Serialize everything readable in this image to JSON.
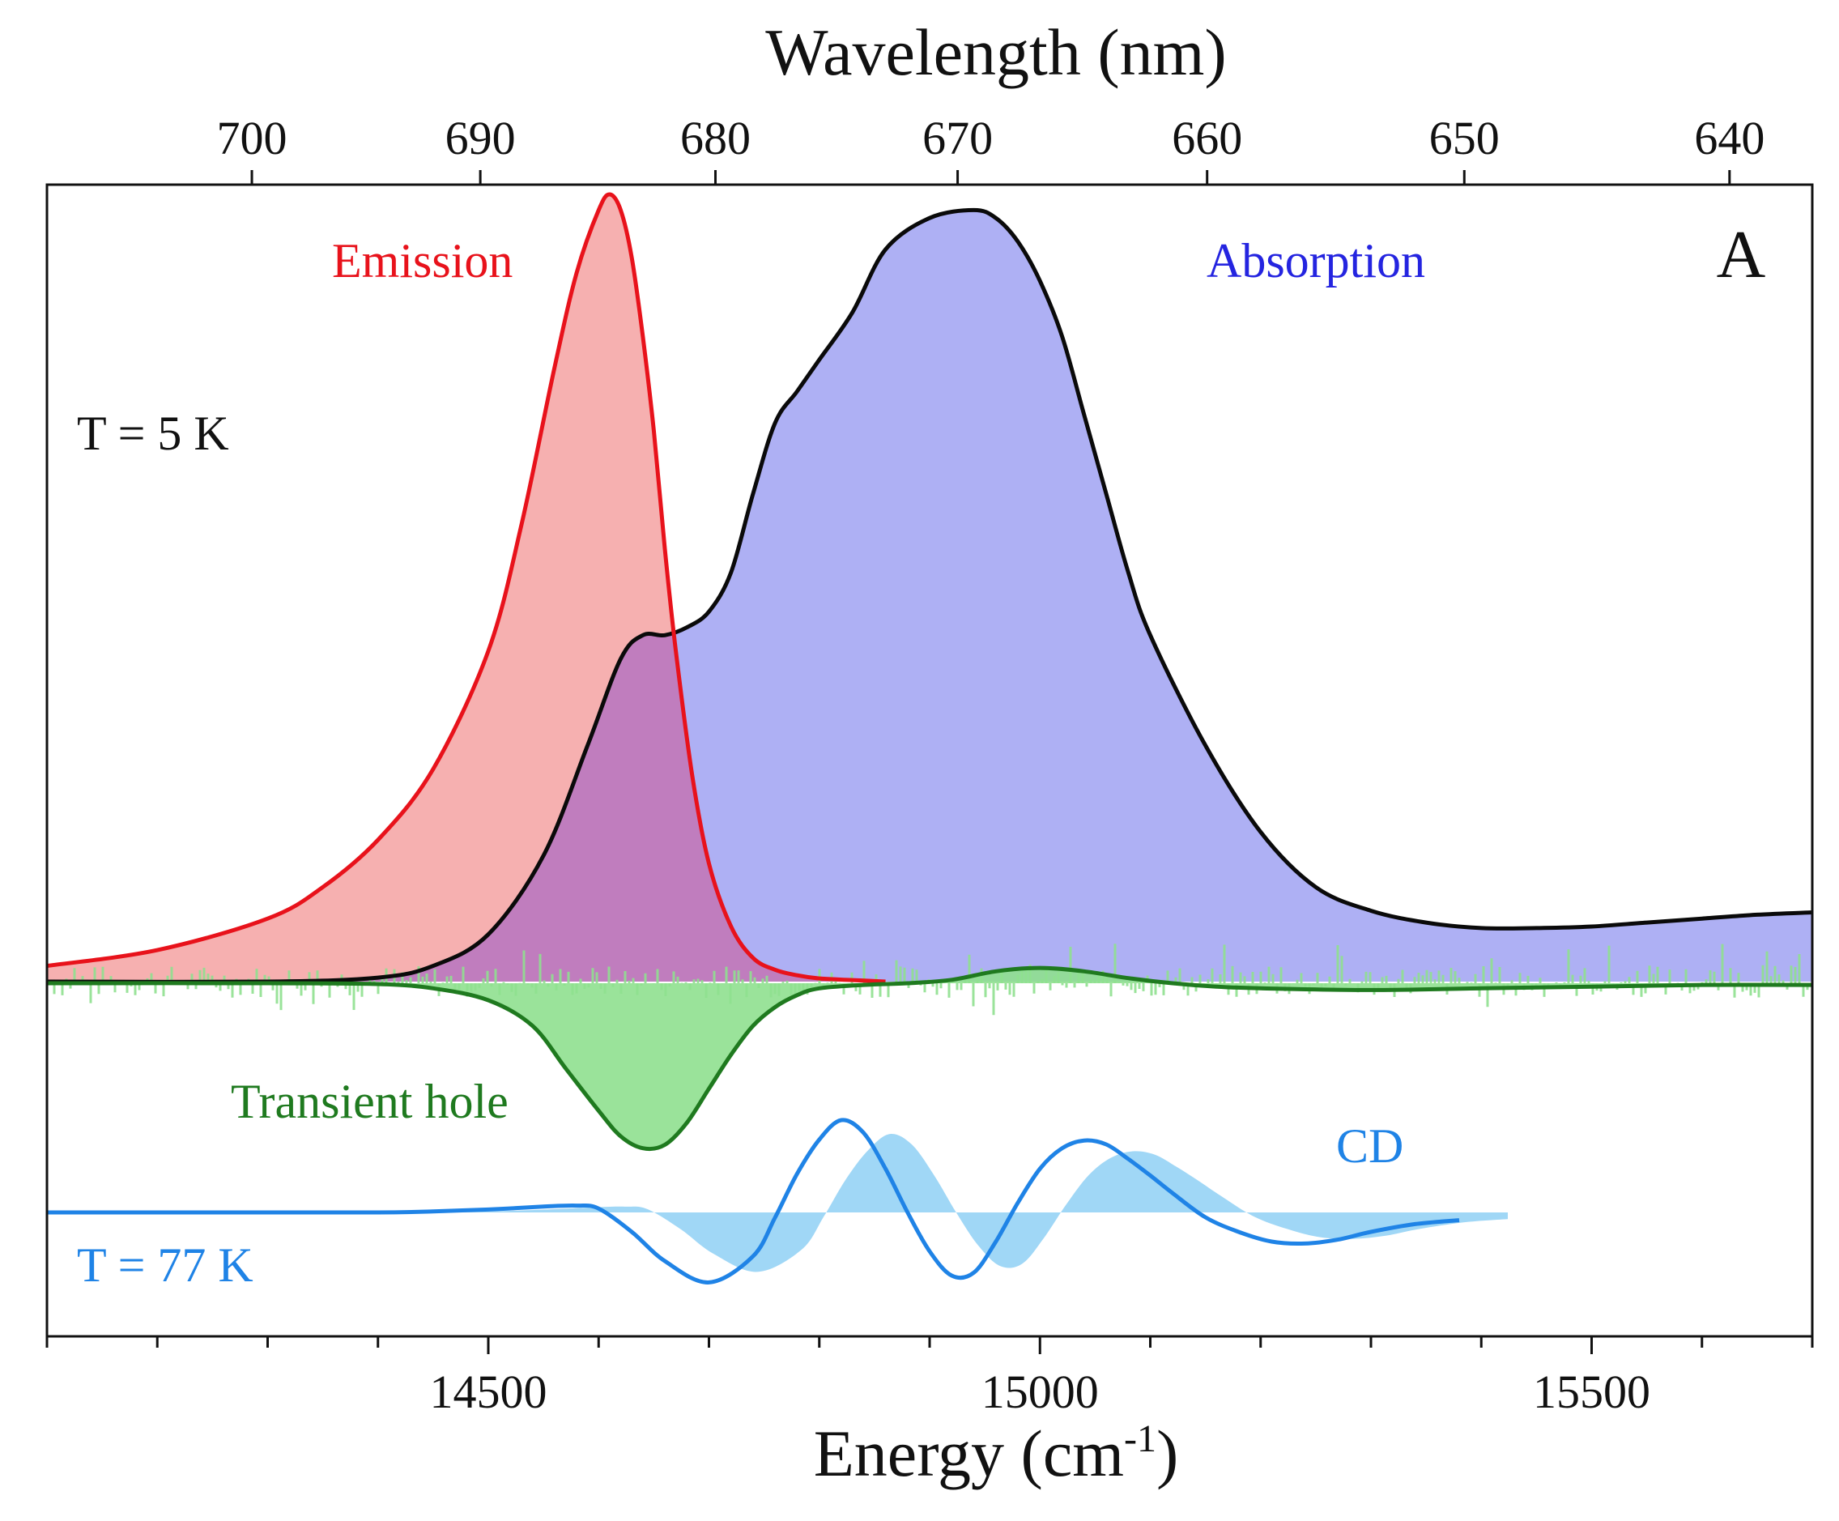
{
  "chart_data": {
    "type": "area",
    "panel_label": "A",
    "xlabel": "Energy (cm",
    "xlabel_superscript": "-1",
    "xlabel_suffix": ")",
    "top_xlabel": "Wavelength (nm)",
    "xlim": [
      14100,
      15700
    ],
    "bottom_ticks": [
      14500,
      15000,
      15500
    ],
    "bottom_tick_labels": [
      "14500",
      "15000",
      "15500"
    ],
    "top_ticks_nm": [
      700,
      690,
      680,
      670,
      660,
      650,
      640
    ],
    "top_tick_labels": [
      "700",
      "690",
      "680",
      "670",
      "660",
      "650",
      "640"
    ],
    "annotations": {
      "emission": "Emission",
      "absorption": "Absorption",
      "temp_5k": "T = 5 K",
      "transient_hole": "Transient hole",
      "cd": "CD",
      "temp_77k": "T = 77 K"
    },
    "colors": {
      "emission": "#e8121b",
      "emission_fill": "#f5a9a9",
      "absorption_line": "#0a0a0a",
      "absorption_fill": "#aeb0f4",
      "overlap_fill": "#c07dbe",
      "absorption_text": "#2424e0",
      "hole_line": "#1f7a1f",
      "hole_fill": "#8fe08f",
      "hole_text": "#1f7a1f",
      "cd_line": "#1f83e6",
      "cd_fill": "#8fd0f5",
      "cd_text": "#1f83e6"
    },
    "series": [
      {
        "name": "Emission",
        "x": [
          14100,
          14200,
          14300,
          14350,
          14400,
          14450,
          14500,
          14530,
          14560,
          14580,
          14600,
          14610,
          14620,
          14630,
          14640,
          14650,
          14660,
          14670,
          14685,
          14700,
          14720,
          14740,
          14760,
          14780,
          14800,
          14830,
          14860
        ],
        "y": [
          0.02,
          0.04,
          0.08,
          0.12,
          0.18,
          0.27,
          0.42,
          0.58,
          0.78,
          0.9,
          0.98,
          1.0,
          0.98,
          0.92,
          0.82,
          0.7,
          0.55,
          0.42,
          0.26,
          0.15,
          0.07,
          0.03,
          0.015,
          0.008,
          0.004,
          0.002,
          0.0
        ]
      },
      {
        "name": "Absorption",
        "x": [
          14100,
          14300,
          14400,
          14450,
          14500,
          14550,
          14590,
          14620,
          14640,
          14660,
          14680,
          14700,
          14720,
          14740,
          14760,
          14780,
          14800,
          14830,
          14860,
          14900,
          14940,
          14960,
          14980,
          15000,
          15020,
          15040,
          15060,
          15080,
          15100,
          15150,
          15200,
          15250,
          15300,
          15350,
          15400,
          15450,
          15500,
          15550,
          15600,
          15650,
          15700
        ],
        "y": [
          0.0,
          0.0,
          0.005,
          0.02,
          0.06,
          0.16,
          0.3,
          0.41,
          0.44,
          0.44,
          0.45,
          0.47,
          0.52,
          0.62,
          0.71,
          0.75,
          0.79,
          0.85,
          0.93,
          0.97,
          0.98,
          0.97,
          0.94,
          0.89,
          0.82,
          0.72,
          0.62,
          0.52,
          0.44,
          0.3,
          0.19,
          0.12,
          0.09,
          0.075,
          0.068,
          0.068,
          0.07,
          0.075,
          0.08,
          0.085,
          0.088
        ]
      },
      {
        "name": "Transient hole",
        "x": [
          14100,
          14300,
          14400,
          14450,
          14500,
          14540,
          14570,
          14600,
          14620,
          14640,
          14660,
          14680,
          14700,
          14720,
          14740,
          14760,
          14780,
          14800,
          14840,
          14880,
          14920,
          14960,
          15000,
          15040,
          15080,
          15120,
          15160,
          15200,
          15300,
          15400,
          15500,
          15600,
          15700
        ],
        "y": [
          0.0,
          0.0,
          -0.005,
          -0.03,
          -0.1,
          -0.25,
          -0.5,
          -0.75,
          -0.9,
          -0.97,
          -0.95,
          -0.82,
          -0.62,
          -0.42,
          -0.25,
          -0.14,
          -0.07,
          -0.03,
          -0.01,
          0.0,
          0.02,
          0.07,
          0.09,
          0.07,
          0.03,
          0.0,
          -0.02,
          -0.03,
          -0.04,
          -0.03,
          -0.02,
          -0.01,
          -0.01
        ]
      },
      {
        "name": "CD",
        "x": [
          14100,
          14300,
          14400,
          14450,
          14500,
          14550,
          14580,
          14600,
          14630,
          14660,
          14700,
          14740,
          14760,
          14780,
          14800,
          14820,
          14840,
          14860,
          14880,
          14900,
          14920,
          14940,
          14960,
          14980,
          15000,
          15020,
          15040,
          15060,
          15080,
          15100,
          15120,
          15150,
          15180,
          15210,
          15240,
          15270,
          15300,
          15340,
          15380
        ],
        "y": [
          0.0,
          0.0,
          0.0,
          0.01,
          0.03,
          0.06,
          0.07,
          0.04,
          -0.2,
          -0.5,
          -0.72,
          -0.45,
          -0.05,
          0.4,
          0.75,
          0.95,
          0.82,
          0.45,
          0.0,
          -0.4,
          -0.65,
          -0.62,
          -0.3,
          0.1,
          0.45,
          0.66,
          0.74,
          0.7,
          0.55,
          0.38,
          0.2,
          -0.05,
          -0.2,
          -0.3,
          -0.32,
          -0.28,
          -0.2,
          -0.12,
          -0.08
        ]
      }
    ]
  }
}
